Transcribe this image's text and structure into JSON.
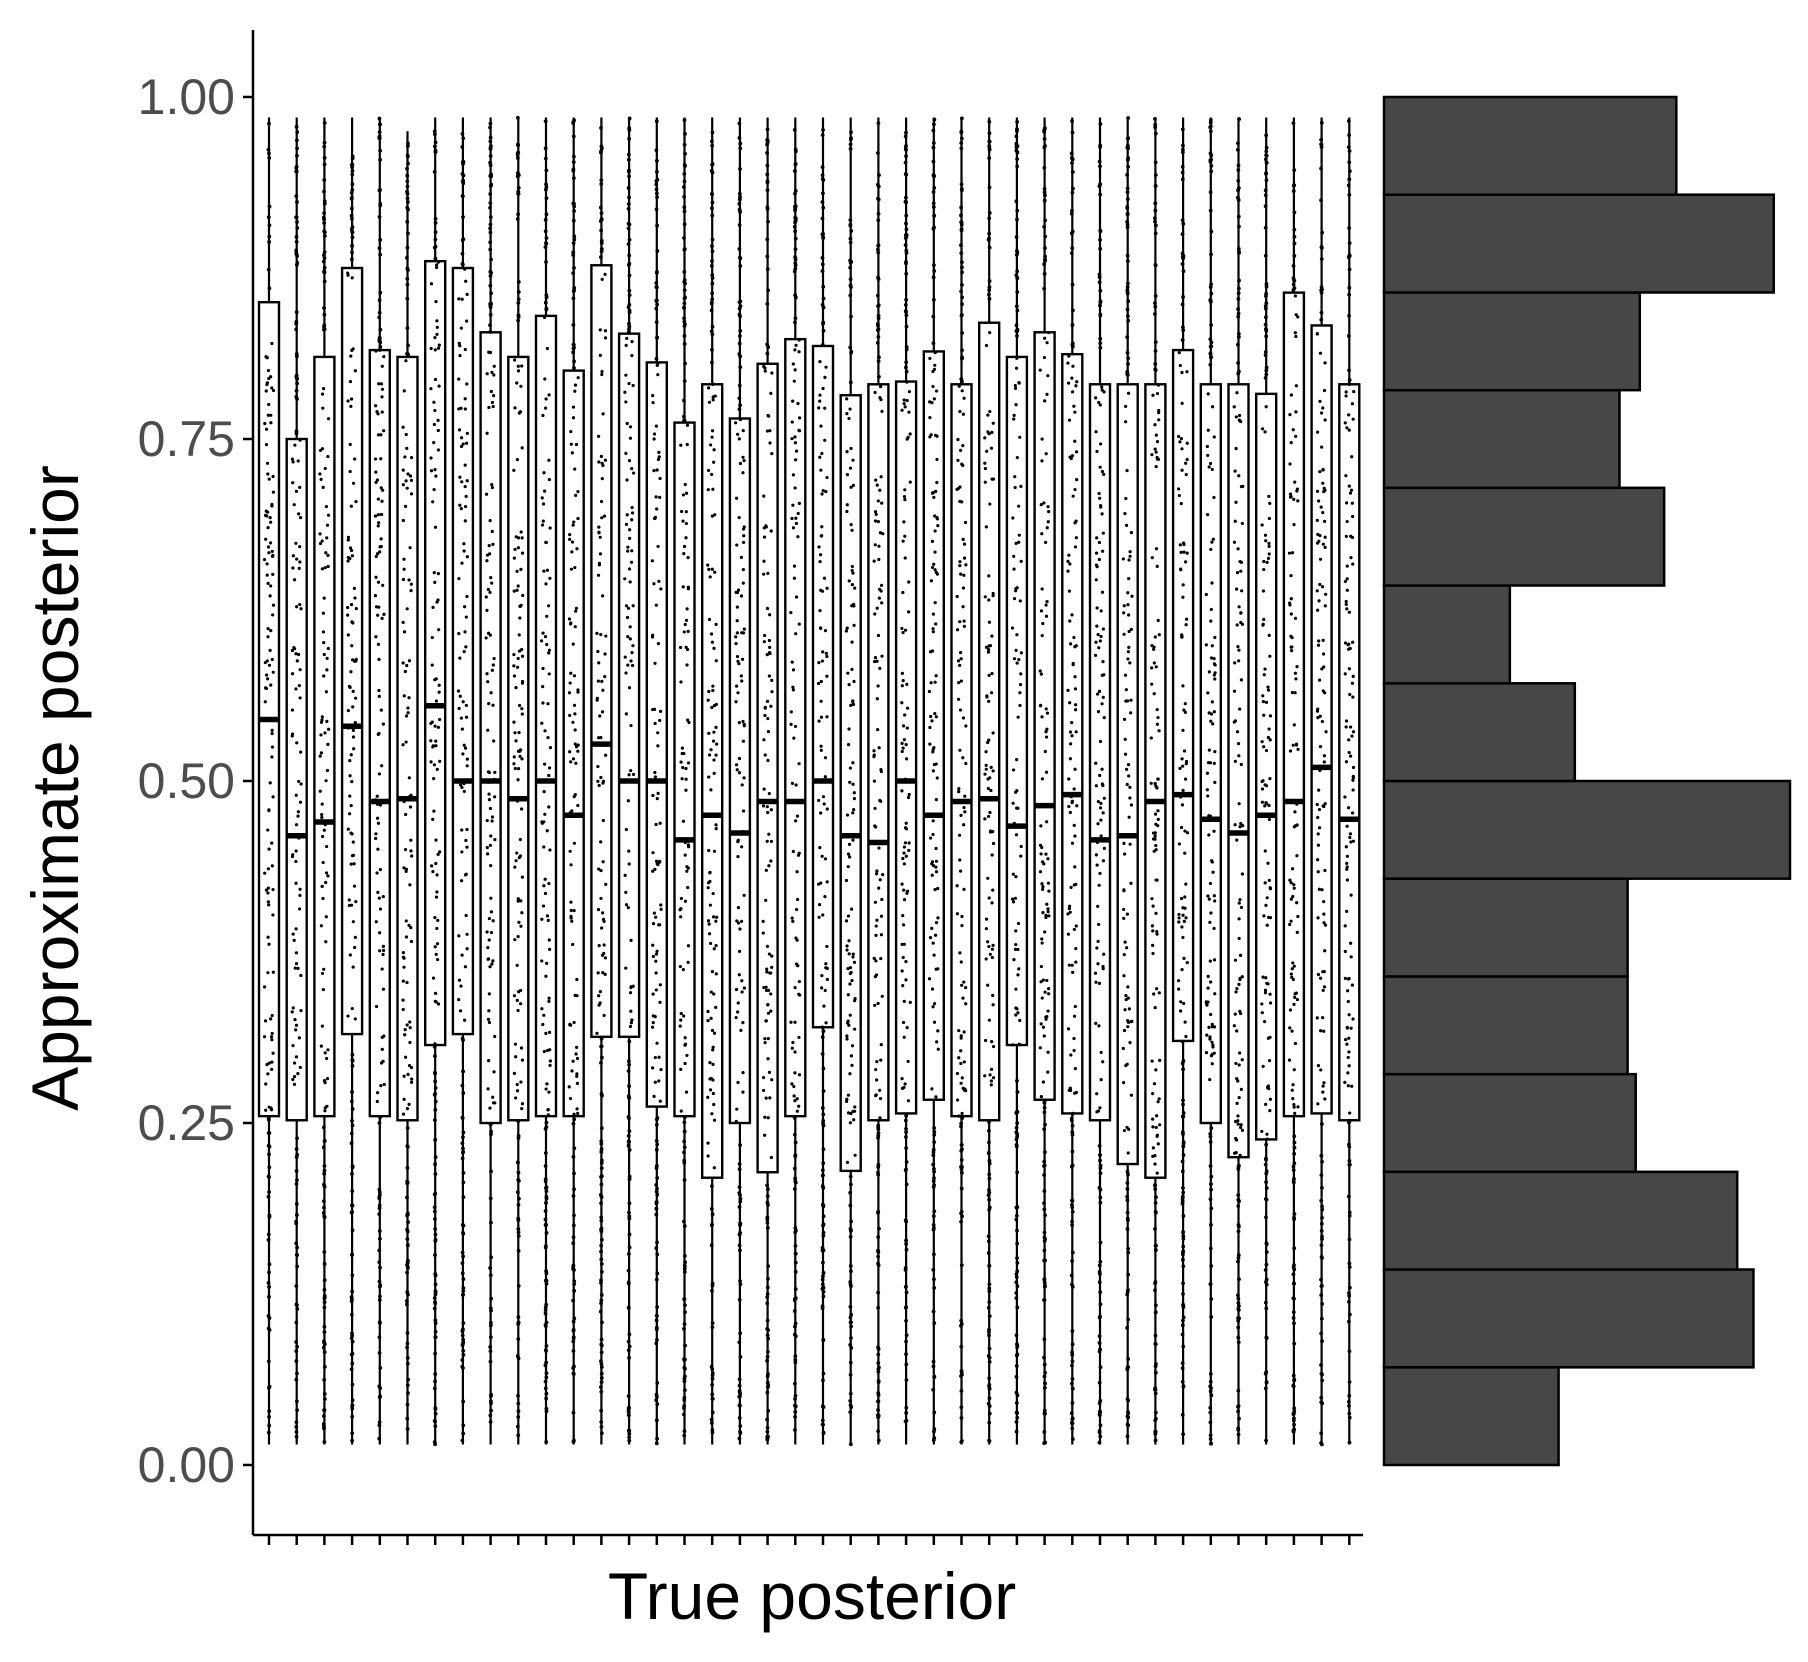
{
  "chart_data": [
    {
      "type": "box",
      "xlabel": "True posterior",
      "ylabel": "Approximate posterior",
      "ylim": [
        -0.05,
        1.05
      ],
      "y_ticks": [
        0,
        0.25,
        0.5,
        0.75,
        1
      ],
      "y_tick_labels": [
        "0.00",
        "0.25",
        "0.50",
        "0.75",
        "1.00"
      ],
      "x_tick_labels_shown": false,
      "grid": false,
      "point_range": [
        0.015,
        0.985
      ],
      "boxes": [
        {
          "q1": 0.255,
          "median": 0.545,
          "q3": 0.85,
          "max": 0.985
        },
        {
          "q1": 0.252,
          "median": 0.46,
          "q3": 0.75,
          "max": 0.985
        },
        {
          "q1": 0.255,
          "median": 0.47,
          "q3": 0.81,
          "max": 0.985
        },
        {
          "q1": 0.315,
          "median": 0.54,
          "q3": 0.875,
          "max": 0.985
        },
        {
          "q1": 0.255,
          "median": 0.485,
          "q3": 0.815,
          "max": 0.985
        },
        {
          "q1": 0.252,
          "median": 0.487,
          "q3": 0.81,
          "max": 0.975
        },
        {
          "q1": 0.307,
          "median": 0.555,
          "q3": 0.88,
          "max": 0.985
        },
        {
          "q1": 0.315,
          "median": 0.5,
          "q3": 0.875,
          "max": 0.985
        },
        {
          "q1": 0.25,
          "median": 0.5,
          "q3": 0.828,
          "max": 0.985
        },
        {
          "q1": 0.252,
          "median": 0.487,
          "q3": 0.81,
          "max": 0.985
        },
        {
          "q1": 0.255,
          "median": 0.5,
          "q3": 0.84,
          "max": 0.985
        },
        {
          "q1": 0.255,
          "median": 0.475,
          "q3": 0.8,
          "max": 0.985
        },
        {
          "q1": 0.313,
          "median": 0.527,
          "q3": 0.877,
          "max": 0.985
        },
        {
          "q1": 0.313,
          "median": 0.5,
          "q3": 0.827,
          "max": 0.985
        },
        {
          "q1": 0.262,
          "median": 0.5,
          "q3": 0.806,
          "max": 0.985
        },
        {
          "q1": 0.255,
          "median": 0.457,
          "q3": 0.762,
          "max": 0.985
        },
        {
          "q1": 0.21,
          "median": 0.475,
          "q3": 0.79,
          "max": 0.985
        },
        {
          "q1": 0.25,
          "median": 0.462,
          "q3": 0.765,
          "max": 0.985
        },
        {
          "q1": 0.214,
          "median": 0.485,
          "q3": 0.805,
          "max": 0.985
        },
        {
          "q1": 0.255,
          "median": 0.485,
          "q3": 0.823,
          "max": 0.985
        },
        {
          "q1": 0.32,
          "median": 0.5,
          "q3": 0.818,
          "max": 0.985
        },
        {
          "q1": 0.215,
          "median": 0.46,
          "q3": 0.782,
          "max": 0.985
        },
        {
          "q1": 0.252,
          "median": 0.455,
          "q3": 0.79,
          "max": 0.985
        },
        {
          "q1": 0.257,
          "median": 0.5,
          "q3": 0.792,
          "max": 0.985
        },
        {
          "q1": 0.267,
          "median": 0.475,
          "q3": 0.814,
          "max": 0.985
        },
        {
          "q1": 0.255,
          "median": 0.485,
          "q3": 0.79,
          "max": 0.985
        },
        {
          "q1": 0.252,
          "median": 0.487,
          "q3": 0.835,
          "max": 0.985
        },
        {
          "q1": 0.307,
          "median": 0.467,
          "q3": 0.81,
          "max": 0.985
        },
        {
          "q1": 0.267,
          "median": 0.482,
          "q3": 0.828,
          "max": 0.985
        },
        {
          "q1": 0.257,
          "median": 0.49,
          "q3": 0.812,
          "max": 0.985
        },
        {
          "q1": 0.252,
          "median": 0.457,
          "q3": 0.79,
          "max": 0.985
        },
        {
          "q1": 0.22,
          "median": 0.46,
          "q3": 0.79,
          "max": 0.985
        },
        {
          "q1": 0.21,
          "median": 0.485,
          "q3": 0.79,
          "max": 0.985
        },
        {
          "q1": 0.31,
          "median": 0.49,
          "q3": 0.815,
          "max": 0.985
        },
        {
          "q1": 0.25,
          "median": 0.472,
          "q3": 0.79,
          "max": 0.985
        },
        {
          "q1": 0.225,
          "median": 0.462,
          "q3": 0.79,
          "max": 0.985
        },
        {
          "q1": 0.238,
          "median": 0.475,
          "q3": 0.783,
          "max": 0.985
        },
        {
          "q1": 0.255,
          "median": 0.485,
          "q3": 0.857,
          "max": 0.985
        },
        {
          "q1": 0.257,
          "median": 0.51,
          "q3": 0.833,
          "max": 0.985
        },
        {
          "q1": 0.252,
          "median": 0.472,
          "q3": 0.79,
          "max": 0.985
        }
      ]
    },
    {
      "type": "bar",
      "orientation": "horizontal",
      "role": "marginal histogram of approximate posterior",
      "bin_width": 0.0714,
      "bins": [
        {
          "from": 0.0,
          "to": 0.0714,
          "count": 0.43
        },
        {
          "from": 0.0714,
          "to": 0.1429,
          "count": 0.91
        },
        {
          "from": 0.1429,
          "to": 0.2143,
          "count": 0.87
        },
        {
          "from": 0.2143,
          "to": 0.2857,
          "count": 0.62
        },
        {
          "from": 0.2857,
          "to": 0.3571,
          "count": 0.6
        },
        {
          "from": 0.3571,
          "to": 0.4286,
          "count": 0.6
        },
        {
          "from": 0.4286,
          "to": 0.5,
          "count": 1.0
        },
        {
          "from": 0.5,
          "to": 0.5714,
          "count": 0.47
        },
        {
          "from": 0.5714,
          "to": 0.6429,
          "count": 0.31
        },
        {
          "from": 0.6429,
          "to": 0.7143,
          "count": 0.69
        },
        {
          "from": 0.7143,
          "to": 0.7857,
          "count": 0.58
        },
        {
          "from": 0.7857,
          "to": 0.8571,
          "count": 0.63
        },
        {
          "from": 0.8571,
          "to": 0.9286,
          "count": 0.96
        },
        {
          "from": 0.9286,
          "to": 1.0,
          "count": 0.72
        }
      ],
      "bar_color": "#474747"
    }
  ]
}
